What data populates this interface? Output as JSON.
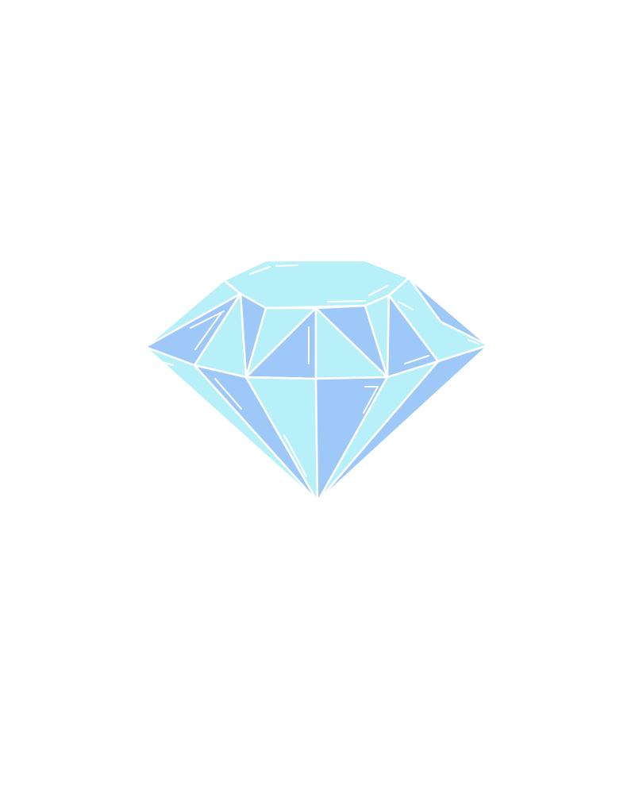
{
  "illustration": {
    "subject": "diamond",
    "icon": "diamond-icon"
  },
  "colors": {
    "background": "#ffffff",
    "facet_light": "#b8f0fa",
    "facet_mid": "#a6dcf8",
    "facet_dark": "#9ec8f8",
    "edge": "#ffffff"
  }
}
